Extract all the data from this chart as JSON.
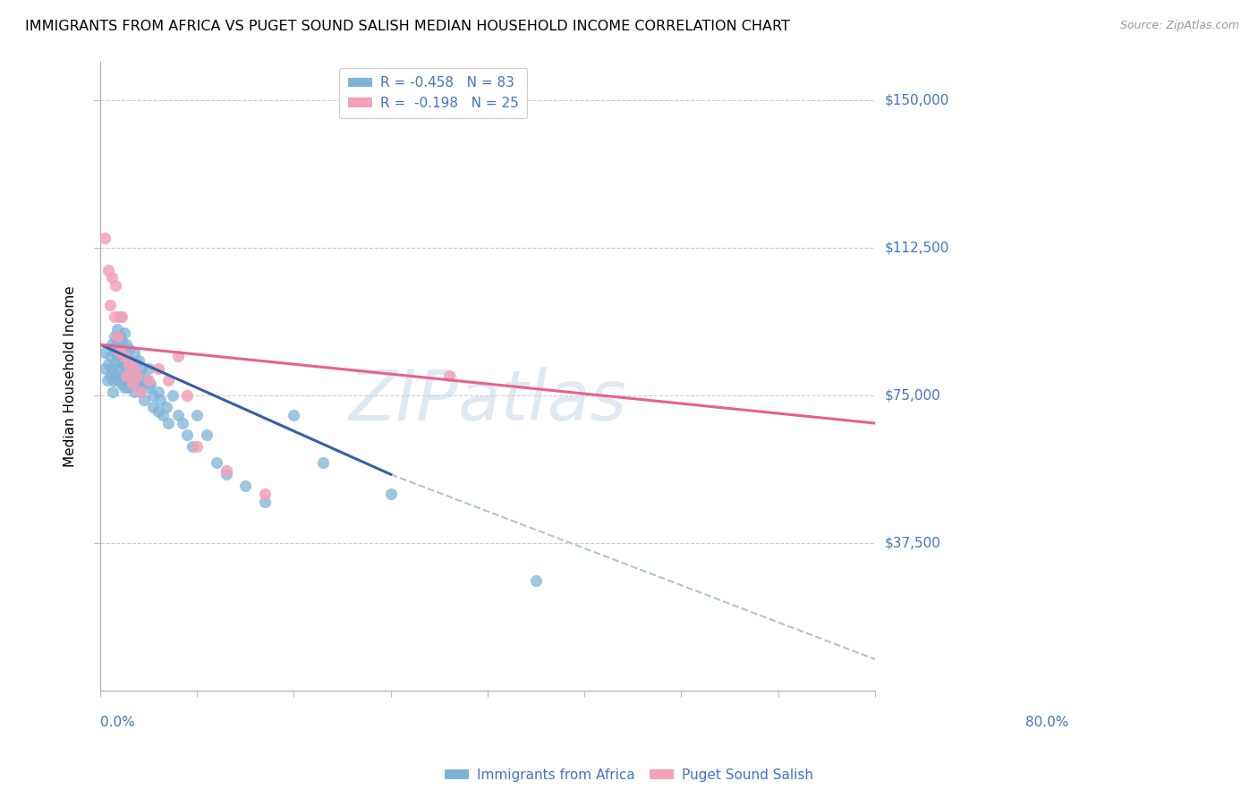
{
  "title": "IMMIGRANTS FROM AFRICA VS PUGET SOUND SALISH MEDIAN HOUSEHOLD INCOME CORRELATION CHART",
  "source": "Source: ZipAtlas.com",
  "ylabel": "Median Household Income",
  "xmin": 0.0,
  "xmax": 0.8,
  "ymin": 0,
  "ymax": 160000,
  "y_ticks": [
    37500,
    75000,
    112500,
    150000
  ],
  "y_tick_labels": [
    "$37,500",
    "$75,000",
    "$112,500",
    "$150,000"
  ],
  "watermark": "ZIPatlas",
  "legend_label_blue": "R = -0.458   N = 83",
  "legend_label_pink": "R =  -0.198   N = 25",
  "legend_label_blue2": "Immigrants from Africa",
  "legend_label_pink2": "Puget Sound Salish",
  "blue_color": "#7eb3d8",
  "pink_color": "#f4a0b8",
  "blue_line_color": "#3a5fa0",
  "pink_line_color": "#e86090",
  "dashed_line_color": "#b0c4d8",
  "text_color": "#4472c4",
  "blue_scatter_x": [
    0.005,
    0.005,
    0.007,
    0.008,
    0.01,
    0.01,
    0.012,
    0.012,
    0.013,
    0.013,
    0.015,
    0.015,
    0.015,
    0.016,
    0.016,
    0.018,
    0.018,
    0.018,
    0.018,
    0.018,
    0.02,
    0.02,
    0.02,
    0.022,
    0.022,
    0.022,
    0.022,
    0.023,
    0.025,
    0.025,
    0.025,
    0.025,
    0.025,
    0.027,
    0.027,
    0.027,
    0.028,
    0.028,
    0.028,
    0.03,
    0.03,
    0.03,
    0.032,
    0.032,
    0.035,
    0.035,
    0.035,
    0.037,
    0.038,
    0.04,
    0.04,
    0.042,
    0.042,
    0.043,
    0.045,
    0.045,
    0.048,
    0.05,
    0.05,
    0.052,
    0.055,
    0.055,
    0.06,
    0.06,
    0.062,
    0.065,
    0.068,
    0.07,
    0.075,
    0.08,
    0.085,
    0.09,
    0.095,
    0.1,
    0.11,
    0.12,
    0.13,
    0.15,
    0.17,
    0.2,
    0.23,
    0.3,
    0.45
  ],
  "blue_scatter_y": [
    82000,
    86000,
    79000,
    83000,
    80000,
    85000,
    88000,
    82000,
    76000,
    79000,
    90000,
    87000,
    83000,
    80000,
    86000,
    92000,
    88000,
    85000,
    82000,
    79000,
    95000,
    90000,
    86000,
    89000,
    84000,
    80000,
    78000,
    83000,
    91000,
    86000,
    83000,
    80000,
    77000,
    88000,
    84000,
    80000,
    77000,
    85000,
    81000,
    87000,
    83000,
    79000,
    82000,
    78000,
    86000,
    80000,
    76000,
    83000,
    79000,
    84000,
    78000,
    80000,
    76000,
    82000,
    78000,
    74000,
    79000,
    82000,
    77000,
    78000,
    75000,
    72000,
    76000,
    71000,
    74000,
    70000,
    72000,
    68000,
    75000,
    70000,
    68000,
    65000,
    62000,
    70000,
    65000,
    58000,
    55000,
    52000,
    48000,
    70000,
    58000,
    50000,
    28000
  ],
  "pink_scatter_x": [
    0.005,
    0.008,
    0.01,
    0.012,
    0.015,
    0.016,
    0.018,
    0.02,
    0.022,
    0.025,
    0.027,
    0.03,
    0.033,
    0.035,
    0.038,
    0.042,
    0.05,
    0.06,
    0.07,
    0.08,
    0.09,
    0.1,
    0.13,
    0.17,
    0.36
  ],
  "pink_scatter_y": [
    115000,
    107000,
    98000,
    105000,
    95000,
    103000,
    90000,
    86000,
    95000,
    85000,
    80000,
    83000,
    78000,
    82000,
    80000,
    76000,
    79000,
    82000,
    79000,
    85000,
    75000,
    62000,
    56000,
    50000,
    80000
  ],
  "blue_trend_x": [
    0.0,
    0.3
  ],
  "blue_trend_y": [
    88000,
    55000
  ],
  "pink_trend_x": [
    0.0,
    0.8
  ],
  "pink_trend_y": [
    88000,
    68000
  ],
  "dashed_trend_x": [
    0.3,
    0.8
  ],
  "dashed_trend_y": [
    55000,
    8000
  ]
}
